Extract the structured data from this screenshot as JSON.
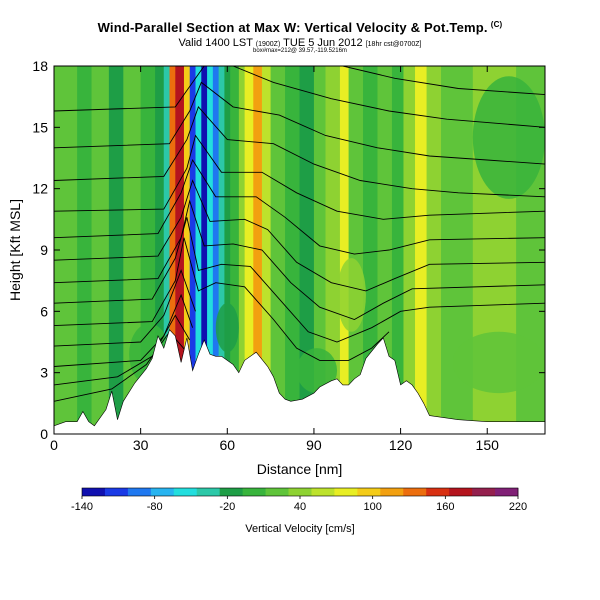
{
  "figure": {
    "title": "Wind-Parallel Section at Max W: Vertical Velocity & Pot.Temp.",
    "title_corner": "(C)",
    "valid_prefix": "Valid 1400 LST",
    "valid_small": "(1900Z)",
    "valid_date": "TUE 5 Jun 2012",
    "valid_suffix": "[18hr cst@0700Z]",
    "subtitle_small": "box#max=212@ 39.57,-119.5216m"
  },
  "chart_data": {
    "type": "heatmap",
    "xlabel": "Distance [nm]",
    "ylabel": "Height [Kft MSL]",
    "xlim": [
      0,
      170
    ],
    "ylim": [
      0,
      18
    ],
    "xticks": [
      0,
      30,
      60,
      90,
      120,
      150
    ],
    "yticks": [
      0,
      3,
      6,
      9,
      12,
      15,
      18
    ],
    "colorbar": {
      "label": "Vertical Velocity [cm/s]",
      "tick_labels": [
        -140,
        -80,
        -20,
        40,
        100,
        160,
        220
      ],
      "levels": [
        -140,
        -120,
        -100,
        -80,
        -60,
        -40,
        -20,
        0,
        20,
        40,
        60,
        80,
        100,
        120,
        140,
        160,
        180,
        200,
        220
      ],
      "colors": [
        "#1010b0",
        "#1a3ae6",
        "#1f78f0",
        "#27b4f0",
        "#22dede",
        "#2cc8a8",
        "#1e9e46",
        "#38b43c",
        "#5fc43a",
        "#8ed232",
        "#bde22c",
        "#e8ee24",
        "#f4cc18",
        "#f2a010",
        "#ec6e0e",
        "#d83012",
        "#b4141e",
        "#94204e",
        "#802076"
      ]
    },
    "terrain_kft": {
      "x": [
        0,
        4,
        8,
        10,
        12,
        14,
        18,
        20,
        22,
        24,
        28,
        32,
        34,
        36,
        38,
        40,
        42,
        44,
        46,
        48,
        50,
        52,
        54,
        56,
        58,
        62,
        64,
        66,
        70,
        74,
        76,
        78,
        80,
        82,
        86,
        90,
        92,
        96,
        98,
        100,
        102,
        104,
        106,
        108,
        112,
        114,
        116,
        118,
        120,
        122,
        124,
        126,
        128,
        130,
        140,
        150,
        160,
        170
      ],
      "y": [
        0.4,
        0.6,
        0.6,
        1.1,
        0.6,
        0.4,
        1.2,
        2.1,
        0.7,
        1.6,
        2.5,
        3.2,
        3.7,
        4.8,
        4.2,
        5.1,
        4.8,
        3.5,
        4.7,
        3.1,
        3.9,
        4.6,
        3.9,
        3.8,
        3.8,
        3.4,
        3.0,
        3.6,
        4.0,
        3.3,
        2.8,
        2.0,
        1.7,
        1.6,
        1.7,
        2.0,
        2.3,
        2.6,
        2.7,
        2.4,
        2.4,
        2.7,
        2.9,
        3.7,
        4.4,
        4.7,
        3.8,
        3.6,
        2.4,
        2.6,
        2.4,
        2.0,
        1.5,
        0.9,
        0.7,
        0.6,
        0.6,
        0.6
      ]
    },
    "velocity_columns": [
      {
        "x": [
          0,
          8
        ],
        "w": 20
      },
      {
        "x": [
          8,
          13
        ],
        "w": 0
      },
      {
        "x": [
          13,
          19
        ],
        "w": 20
      },
      {
        "x": [
          19,
          24
        ],
        "w": -20
      },
      {
        "x": [
          24,
          30
        ],
        "w": 20
      },
      {
        "x": [
          30,
          35
        ],
        "w": 0
      },
      {
        "x": [
          35,
          38
        ],
        "w": -20
      },
      {
        "x": [
          38,
          40
        ],
        "w": -40
      },
      {
        "x": [
          40,
          42
        ],
        "w": 140
      },
      {
        "x": [
          42,
          45
        ],
        "w": 180
      },
      {
        "x": [
          45,
          47
        ],
        "w": 100
      },
      {
        "x": [
          47,
          49
        ],
        "w": -120
      },
      {
        "x": [
          49,
          51
        ],
        "w": -60
      },
      {
        "x": [
          51,
          53
        ],
        "w": -140
      },
      {
        "x": [
          53,
          55
        ],
        "w": -60
      },
      {
        "x": [
          55,
          57
        ],
        "w": -100
      },
      {
        "x": [
          57,
          59
        ],
        "w": -40
      },
      {
        "x": [
          59,
          61
        ],
        "w": -20
      },
      {
        "x": [
          61,
          64
        ],
        "w": 0
      },
      {
        "x": [
          64,
          66
        ],
        "w": 40
      },
      {
        "x": [
          66,
          69
        ],
        "w": 80
      },
      {
        "x": [
          69,
          72
        ],
        "w": 120
      },
      {
        "x": [
          72,
          75
        ],
        "w": 60
      },
      {
        "x": [
          75,
          80
        ],
        "w": 20
      },
      {
        "x": [
          80,
          85
        ],
        "w": 0
      },
      {
        "x": [
          85,
          90
        ],
        "w": -20
      },
      {
        "x": [
          90,
          94
        ],
        "w": 20
      },
      {
        "x": [
          94,
          99
        ],
        "w": 40
      },
      {
        "x": [
          99,
          102
        ],
        "w": 80
      },
      {
        "x": [
          102,
          107
        ],
        "w": 20
      },
      {
        "x": [
          107,
          112
        ],
        "w": 0
      },
      {
        "x": [
          112,
          117
        ],
        "w": 20
      },
      {
        "x": [
          117,
          121
        ],
        "w": 0
      },
      {
        "x": [
          121,
          125
        ],
        "w": 40
      },
      {
        "x": [
          125,
          129
        ],
        "w": 80
      },
      {
        "x": [
          129,
          134
        ],
        "w": 40
      },
      {
        "x": [
          134,
          145
        ],
        "w": 20
      },
      {
        "x": [
          145,
          160
        ],
        "w": 40
      },
      {
        "x": [
          160,
          170
        ],
        "w": 20
      }
    ],
    "velocity_blobs": [
      {
        "x": [
          26,
          40
        ],
        "y": [
          2.4,
          5.4
        ],
        "w": 0
      },
      {
        "x": [
          84,
          98
        ],
        "y": [
          2.0,
          4.2
        ],
        "w": 0
      },
      {
        "x": [
          98,
          108
        ],
        "y": [
          5.0,
          8.6
        ],
        "w": 40
      },
      {
        "x": [
          145,
          170
        ],
        "y": [
          11.5,
          17.5
        ],
        "w": 0
      },
      {
        "x": [
          138,
          170
        ],
        "y": [
          2.0,
          5.0
        ],
        "w": 20
      },
      {
        "x": [
          56,
          64
        ],
        "y": [
          4.0,
          6.4
        ],
        "w": -20
      }
    ],
    "theta_contours": [
      {
        "label": "",
        "points": [
          [
            0,
            1.6
          ],
          [
            20,
            2.2
          ],
          [
            32,
            3.4
          ],
          [
            40,
            5.0
          ],
          [
            46,
            4.0
          ]
        ]
      },
      {
        "label": "",
        "points": [
          [
            0,
            2.4
          ],
          [
            22,
            2.8
          ],
          [
            34,
            3.8
          ],
          [
            42,
            5.8
          ],
          [
            47,
            4.6
          ]
        ]
      },
      {
        "label": "",
        "points": [
          [
            0,
            3.3
          ],
          [
            30,
            3.6
          ],
          [
            38,
            4.8
          ],
          [
            44,
            6.8
          ],
          [
            48,
            5.2
          ]
        ]
      },
      {
        "label": "",
        "points": [
          [
            0,
            4.3
          ],
          [
            30,
            4.5
          ],
          [
            38,
            5.8
          ],
          [
            44,
            8.0
          ],
          [
            49,
            6.0
          ]
        ]
      },
      {
        "label": "",
        "points": [
          [
            0,
            5.3
          ],
          [
            34,
            5.5
          ],
          [
            42,
            7.5
          ],
          [
            45,
            9.6
          ],
          [
            50,
            7.0
          ],
          [
            56,
            7.4
          ],
          [
            66,
            7.2
          ],
          [
            76,
            5.6
          ],
          [
            84,
            4.2
          ],
          [
            92,
            3.6
          ],
          [
            102,
            3.6
          ],
          [
            110,
            4.2
          ],
          [
            116,
            5.0
          ]
        ]
      },
      {
        "label": "",
        "points": [
          [
            0,
            6.4
          ],
          [
            34,
            6.6
          ],
          [
            42,
            8.6
          ],
          [
            46,
            10.6
          ],
          [
            50,
            8.0
          ],
          [
            58,
            8.3
          ],
          [
            68,
            8.2
          ],
          [
            78,
            6.6
          ],
          [
            88,
            5.0
          ],
          [
            98,
            4.5
          ],
          [
            110,
            5.2
          ],
          [
            120,
            6.0
          ],
          [
            130,
            6.2
          ],
          [
            170,
            6.4
          ]
        ]
      },
      {
        "label": "",
        "points": [
          [
            0,
            7.4
          ],
          [
            36,
            7.6
          ],
          [
            44,
            9.6
          ],
          [
            47,
            11.4
          ],
          [
            52,
            9.2
          ],
          [
            62,
            9.3
          ],
          [
            72,
            9.0
          ],
          [
            82,
            7.4
          ],
          [
            92,
            6.2
          ],
          [
            104,
            5.6
          ],
          [
            114,
            6.4
          ],
          [
            124,
            7.1
          ],
          [
            170,
            7.3
          ]
        ]
      },
      {
        "label": "",
        "points": [
          [
            0,
            8.5
          ],
          [
            36,
            8.7
          ],
          [
            44,
            10.6
          ],
          [
            48,
            12.4
          ],
          [
            54,
            10.4
          ],
          [
            66,
            10.5
          ],
          [
            74,
            10.0
          ],
          [
            84,
            8.4
          ],
          [
            96,
            7.4
          ],
          [
            108,
            7.0
          ],
          [
            118,
            7.6
          ],
          [
            130,
            8.3
          ],
          [
            170,
            8.4
          ]
        ]
      },
      {
        "label": "",
        "points": [
          [
            0,
            9.6
          ],
          [
            36,
            9.8
          ],
          [
            44,
            11.8
          ],
          [
            48,
            13.4
          ],
          [
            56,
            11.6
          ],
          [
            70,
            11.6
          ],
          [
            80,
            10.6
          ],
          [
            92,
            9.2
          ],
          [
            104,
            8.8
          ],
          [
            116,
            9.0
          ],
          [
            130,
            9.5
          ],
          [
            170,
            9.6
          ]
        ]
      },
      {
        "label": "",
        "points": [
          [
            0,
            10.9
          ],
          [
            38,
            11.0
          ],
          [
            46,
            13.0
          ],
          [
            49,
            14.6
          ],
          [
            58,
            12.8
          ],
          [
            72,
            12.8
          ],
          [
            84,
            11.8
          ],
          [
            98,
            10.9
          ],
          [
            114,
            10.5
          ],
          [
            130,
            10.7
          ],
          [
            170,
            10.9
          ]
        ]
      },
      {
        "label": "",
        "points": [
          [
            0,
            12.4
          ],
          [
            38,
            12.6
          ],
          [
            46,
            14.4
          ],
          [
            50,
            16.0
          ],
          [
            60,
            14.4
          ],
          [
            76,
            14.2
          ],
          [
            90,
            13.2
          ],
          [
            106,
            12.4
          ],
          [
            124,
            12.0
          ],
          [
            140,
            11.8
          ],
          [
            170,
            11.6
          ]
        ]
      },
      {
        "label": "",
        "points": [
          [
            0,
            14.0
          ],
          [
            40,
            14.2
          ],
          [
            47,
            15.8
          ],
          [
            51,
            17.2
          ],
          [
            62,
            16.0
          ],
          [
            78,
            15.6
          ],
          [
            94,
            14.6
          ],
          [
            112,
            14.0
          ],
          [
            130,
            13.6
          ],
          [
            150,
            13.4
          ],
          [
            170,
            13.2
          ]
        ]
      },
      {
        "label": "",
        "points": [
          [
            0,
            15.8
          ],
          [
            42,
            16.0
          ],
          [
            48,
            17.2
          ],
          [
            52,
            18.0
          ]
        ]
      },
      {
        "label": "",
        "points": [
          [
            62,
            18.0
          ],
          [
            76,
            17.2
          ],
          [
            96,
            16.4
          ],
          [
            116,
            15.8
          ],
          [
            136,
            15.4
          ],
          [
            170,
            15.0
          ]
        ]
      },
      {
        "label": "",
        "points": [
          [
            100,
            18.0
          ],
          [
            118,
            17.4
          ],
          [
            140,
            16.9
          ],
          [
            170,
            16.6
          ]
        ]
      }
    ]
  }
}
